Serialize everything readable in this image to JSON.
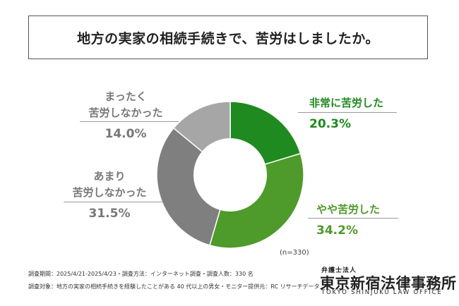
{
  "title": "地方の実家の相続手続きで、苦労はしましたか。",
  "chart_data": {
    "type": "pie",
    "categories": [
      "非常に苦労した",
      "やや苦労した",
      "あまり苦労しなかった",
      "まったく苦労しなかった"
    ],
    "values": [
      20.3,
      34.2,
      31.5,
      14.0
    ],
    "value_labels": [
      "20.3%",
      "34.2%",
      "31.5%",
      "14.0%"
    ],
    "category_lines": [
      [
        "非常に苦労した"
      ],
      [
        "やや苦労した"
      ],
      [
        "あまり",
        "苦労しなかった"
      ],
      [
        "まったく",
        "苦労しなかった"
      ]
    ],
    "colors": [
      "#1f8a1f",
      "#4e9a2a",
      "#7f7f7f",
      "#a6a6a6"
    ],
    "donut": true,
    "sample_size_label": "(n=330)"
  },
  "footer": {
    "line1": "調査期間：2025/4/21-2025/4/23・調査方法：インターネット調査・調査人数：330 名",
    "line2": "調査対象：地方の実家の相続手続きを経験したことがある 40 代以上の男女・モニター提供元：RC リサーチデータ"
  },
  "logo": {
    "sub": "弁護士法人",
    "main": "東京新宿法律事務所",
    "en": "TOKYO SHINJUKU LAW OFFICE"
  }
}
